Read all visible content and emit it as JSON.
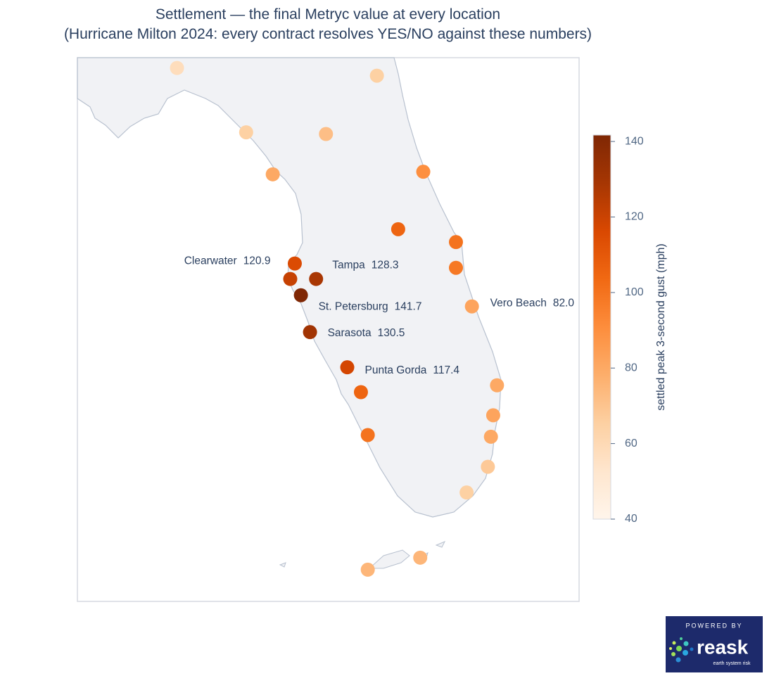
{
  "chart_data": {
    "type": "scatter_geo",
    "title": "Settlement — the final Metryc value at every location",
    "subtitle": "(Hurricane Milton 2024: every contract resolves YES/NO against these numbers)",
    "xlim": [
      -85.58,
      -78.98
    ],
    "ylim": [
      24.23,
      30.57
    ],
    "names": [
      null,
      null,
      null,
      null,
      null,
      null,
      null,
      null,
      null,
      null,
      "Clearwater",
      "Tampa",
      "St. Petersburg",
      "Vero Beach",
      "Sarasota",
      "Punta Gorda",
      null,
      null,
      null,
      null,
      null,
      null,
      null,
      null,
      null
    ],
    "lon": [
      -84.27,
      -81.64,
      -83.36,
      -82.31,
      -83.01,
      -81.03,
      -81.36,
      -80.6,
      -80.6,
      -82.72,
      -82.78,
      -82.44,
      -82.64,
      -80.39,
      -82.52,
      -82.03,
      -81.85,
      -80.06,
      -80.11,
      -81.76,
      -80.14,
      -80.18,
      -80.46,
      -81.76,
      -81.07
    ],
    "lat": [
      30.45,
      30.36,
      29.7,
      29.68,
      29.21,
      29.24,
      28.57,
      28.42,
      28.12,
      28.17,
      27.99,
      27.99,
      27.8,
      27.67,
      27.37,
      26.96,
      26.67,
      26.75,
      26.4,
      26.17,
      26.15,
      25.8,
      25.5,
      24.6,
      24.74
    ],
    "values": [
      58,
      65,
      65,
      72,
      80,
      90,
      105,
      100,
      98,
      115,
      120.9,
      128.3,
      141.7,
      82.0,
      130.5,
      117.4,
      105,
      80,
      82,
      100,
      80,
      68,
      65,
      75,
      75
    ],
    "value_labels": [
      null,
      null,
      null,
      null,
      null,
      null,
      null,
      null,
      null,
      null,
      "120.9",
      "128.3",
      "141.7",
      "82.0",
      "130.5",
      "117.4",
      null,
      null,
      null,
      null,
      null,
      null,
      null,
      null,
      null
    ],
    "colorbar": {
      "title": "settled peak 3-second gust (mph)",
      "lim": [
        40,
        141.7
      ],
      "ticks": [
        40,
        60,
        80,
        100,
        120,
        140
      ],
      "colorscale": [
        "#fff5eb",
        "#fee6ce",
        "#fdd0a2",
        "#fdae6b",
        "#fd8d3c",
        "#f16913",
        "#d94801",
        "#a63603",
        "#7f2704"
      ]
    }
  },
  "logo": {
    "caption": "POWERED BY",
    "name": "reask",
    "tagline": "earth system risk"
  }
}
